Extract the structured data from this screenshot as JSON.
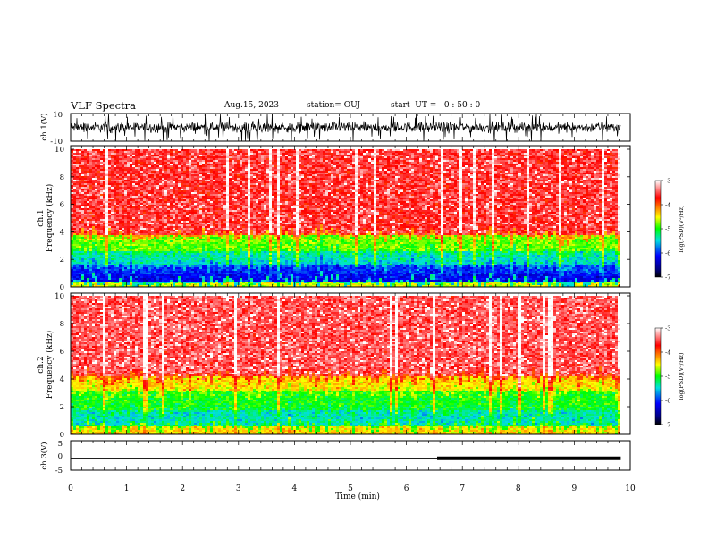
{
  "header": {
    "title": "VLF Spectra",
    "date": "Aug.15, 2023",
    "station": "station= OUJ",
    "start": "start  UT =   0 : 50 : 0"
  },
  "chart_data": [
    {
      "type": "line",
      "panel": "ch1-waveform",
      "ylabel": "ch.1(V)",
      "xlim": [
        0,
        10
      ],
      "ylim": [
        -10,
        10
      ],
      "yticks": [
        "10",
        "-10"
      ],
      "x_extent_min": 9.83,
      "description_of_signal": "noisy waveform oscillating roughly between -6 and 6 V with spikes to +10 and -10"
    },
    {
      "type": "heatmap",
      "panel": "ch1-spectrogram",
      "ylabel": "ch.1\nFrequency  (kHz)",
      "ylabel_line1": "ch.1",
      "ylabel_line2": "Frequency  (kHz)",
      "xlim": [
        0,
        10
      ],
      "ylim": [
        0,
        10
      ],
      "yticks": [
        "0",
        "2",
        "4",
        "6",
        "8",
        "10"
      ],
      "colorbar": {
        "label": "log(PSD)(V²/Hz)",
        "range": [
          -7,
          -3
        ],
        "ticks": [
          "-3",
          "-4",
          "-5",
          "-6",
          "-7"
        ]
      },
      "bands": [
        {
          "f_min": 0.0,
          "f_max": 0.4,
          "level": -4.6
        },
        {
          "f_min": 0.4,
          "f_max": 1.0,
          "level": -6.2
        },
        {
          "f_min": 1.0,
          "f_max": 1.6,
          "level": -6.0
        },
        {
          "f_min": 1.6,
          "f_max": 2.6,
          "level": -5.4
        },
        {
          "f_min": 2.6,
          "f_max": 3.8,
          "level": -4.8
        },
        {
          "f_min": 3.8,
          "f_max": 10.0,
          "level": -3.6
        }
      ]
    },
    {
      "type": "heatmap",
      "panel": "ch2-spectrogram",
      "ylabel_line1": "ch.2",
      "ylabel_line2": "Frequency  (kHz)",
      "xlim": [
        0,
        10
      ],
      "ylim": [
        0,
        10
      ],
      "yticks": [
        "0",
        "2",
        "4",
        "6",
        "8",
        "10"
      ],
      "colorbar": {
        "label": "log(PSD)(V²/Hz)",
        "range": [
          -7,
          -3
        ],
        "ticks": [
          "-3",
          "-4",
          "-5",
          "-6",
          "-7"
        ]
      },
      "bands": [
        {
          "f_min": 0.0,
          "f_max": 0.6,
          "level": -4.4
        },
        {
          "f_min": 0.6,
          "f_max": 1.8,
          "level": -5.4
        },
        {
          "f_min": 1.8,
          "f_max": 3.2,
          "level": -5.0
        },
        {
          "f_min": 3.2,
          "f_max": 4.2,
          "level": -4.4
        },
        {
          "f_min": 4.2,
          "f_max": 10.0,
          "level": -3.5
        }
      ]
    },
    {
      "type": "line",
      "panel": "ch3-waveform",
      "ylabel": "ch.3(V)",
      "xlim": [
        0,
        10
      ],
      "ylim": [
        -5,
        5
      ],
      "yticks": [
        "5",
        "0",
        "-5"
      ],
      "x": [
        0,
        6.55,
        6.55,
        9.83
      ],
      "y": [
        -1.0,
        -1.0,
        -1.0,
        -1.0
      ],
      "thick_segment": {
        "x_start": 6.55,
        "x_end": 9.83,
        "value": -1.0
      }
    }
  ],
  "xaxis": {
    "label": "Time  (min)",
    "ticks": [
      "0",
      "1",
      "2",
      "3",
      "4",
      "5",
      "6",
      "7",
      "8",
      "9",
      "10"
    ]
  }
}
